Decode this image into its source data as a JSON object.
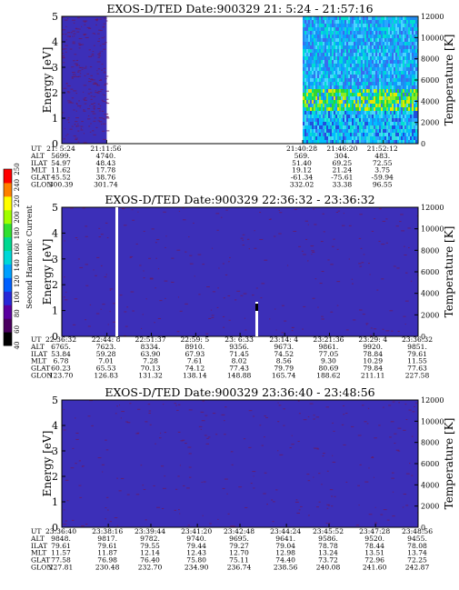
{
  "figure_title": "EXOS-D/TED",
  "colors": {
    "plot_fill": "#3c2fb8",
    "speckle": "#6a1a60",
    "gap": "#ffffff",
    "axis": "#000000"
  },
  "colorbar": {
    "label": "Second Harmonic Current",
    "ticks": [
      "40",
      "60",
      "80",
      "100",
      "120",
      "140",
      "160",
      "180",
      "200",
      "220",
      "240",
      "250"
    ],
    "colors": [
      "#000000",
      "#4a0060",
      "#5a00a0",
      "#2828d8",
      "#0060ff",
      "#00a0ff",
      "#00d8d8",
      "#00d890",
      "#30e030",
      "#a0ff00",
      "#ffff00",
      "#ff8000",
      "#ff0000"
    ]
  },
  "chart_data": [
    {
      "type": "heatmap",
      "title": "EXOS-D/TED  Date:900329  21: 5:24 - 21:57:16",
      "ylabel": "Energy [eV]",
      "y2label": "Temperature [K]",
      "ylim": [
        0,
        5
      ],
      "yticks": [
        "0",
        "1",
        "2",
        "3",
        "4",
        "5"
      ],
      "y2lim": [
        0,
        12000
      ],
      "y2ticks": [
        "0",
        "2000",
        "4000",
        "6000",
        "8000",
        "10000",
        "12000"
      ],
      "time_range": [
        "21:05:24",
        "21:57:16"
      ],
      "data_segments": [
        {
          "start": "21:05:24",
          "end": "21:11:56",
          "level": "low"
        },
        {
          "start": "21:40:28",
          "end": "21:57:16",
          "level": "mixed-high"
        }
      ],
      "table_row_labels": [
        "UT",
        "ALT",
        "ILAT",
        "MLT",
        "GLAT",
        "GLON"
      ],
      "table_columns": [
        [
          "21: 5:24",
          "5699.",
          "54.97",
          "11.62",
          "45.52",
          "300.39"
        ],
        [
          "21:11:56",
          "4740.",
          "48.43",
          "17.78",
          "38.76",
          "301.74"
        ],
        [
          "21:40:28",
          "569.",
          "51.40",
          "19.12",
          "-61.34",
          "332.02"
        ],
        [
          "21:46:20",
          "304.",
          "69.25",
          "21.24",
          "-75.61",
          "33.38"
        ],
        [
          "21:52:12",
          "483.",
          "72.55",
          "3.75",
          "-59.94",
          "96.55"
        ]
      ]
    },
    {
      "type": "heatmap",
      "title": "EXOS-D/TED  Date:900329  22:36:32 - 23:36:32",
      "ylabel": "Energy [eV]",
      "y2label": "Temperature [K]",
      "ylim": [
        0,
        5
      ],
      "yticks": [
        "0",
        "1",
        "2",
        "3",
        "4",
        "5"
      ],
      "y2lim": [
        0,
        12000
      ],
      "y2ticks": [
        "0",
        "2000",
        "4000",
        "6000",
        "8000",
        "10000",
        "12000"
      ],
      "time_range": [
        "22:36:32",
        "23:36:32"
      ],
      "data_segments": [
        {
          "start": "22:36:32",
          "end": "23:36:32",
          "level": "low"
        }
      ],
      "table_row_labels": [
        "UT",
        "ALT",
        "ILAT",
        "MLT",
        "GLAT",
        "GLON"
      ],
      "table_columns": [
        [
          "22:36:32",
          "6765.",
          "53.84",
          "6.78",
          "60.23",
          "123.70"
        ],
        [
          "22:44: 8",
          "7623.",
          "59.28",
          "7.01",
          "65.53",
          "126.83"
        ],
        [
          "22:51:37",
          "8334.",
          "63.90",
          "7.28",
          "70.13",
          "131.32"
        ],
        [
          "22:59: 5",
          "8910.",
          "67.93",
          "7.61",
          "74.12",
          "138.14"
        ],
        [
          "23: 6:33",
          "9356.",
          "71.45",
          "8.02",
          "77.43",
          "148.88"
        ],
        [
          "23:14: 4",
          "9673.",
          "74.52",
          "8.56",
          "79.79",
          "165.74"
        ],
        [
          "23:21:36",
          "9861.",
          "77.05",
          "9.30",
          "80.69",
          "188.62"
        ],
        [
          "23:29: 4",
          "9920.",
          "78.84",
          "10.29",
          "79.84",
          "211.11"
        ],
        [
          "23:36:32",
          "9851.",
          "79.61",
          "11.55",
          "77.63",
          "227.58"
        ]
      ]
    },
    {
      "type": "heatmap",
      "title": "EXOS-D/TED  Date:900329  23:36:40 - 23:48:56",
      "ylabel": "Energy [eV]",
      "y2label": "Temperature [K]",
      "ylim": [
        0,
        5
      ],
      "yticks": [
        "0",
        "1",
        "2",
        "3",
        "4",
        "5"
      ],
      "y2lim": [
        0,
        12000
      ],
      "y2ticks": [
        "0",
        "2000",
        "4000",
        "6000",
        "8000",
        "10000",
        "12000"
      ],
      "time_range": [
        "23:36:40",
        "23:48:56"
      ],
      "data_segments": [
        {
          "start": "23:36:40",
          "end": "23:48:56",
          "level": "low"
        }
      ],
      "table_row_labels": [
        "UT",
        "ALT",
        "ILAT",
        "MLT",
        "GLAT",
        "GLON"
      ],
      "table_columns": [
        [
          "23:36:40",
          "9848.",
          "79.61",
          "11.57",
          "77.58",
          "227.81"
        ],
        [
          "23:38:16",
          "9817.",
          "79.61",
          "11.87",
          "76.98",
          "230.48"
        ],
        [
          "23:39:44",
          "9782.",
          "79.55",
          "12.14",
          "76.40",
          "232.70"
        ],
        [
          "23:41:20",
          "9740.",
          "79.44",
          "12.43",
          "75.80",
          "234.90"
        ],
        [
          "23:42:48",
          "9695.",
          "79.27",
          "12.70",
          "75.11",
          "236.74"
        ],
        [
          "23:44:24",
          "9641.",
          "79.04",
          "12.98",
          "74.40",
          "238.56"
        ],
        [
          "23:45:52",
          "9586.",
          "78.78",
          "13.24",
          "73.72",
          "240.08"
        ],
        [
          "23:47:28",
          "9520.",
          "78.44",
          "13.51",
          "72.96",
          "241.60"
        ],
        [
          "23:48:56",
          "9455.",
          "78.08",
          "13.74",
          "72.25",
          "242.87"
        ]
      ]
    }
  ]
}
